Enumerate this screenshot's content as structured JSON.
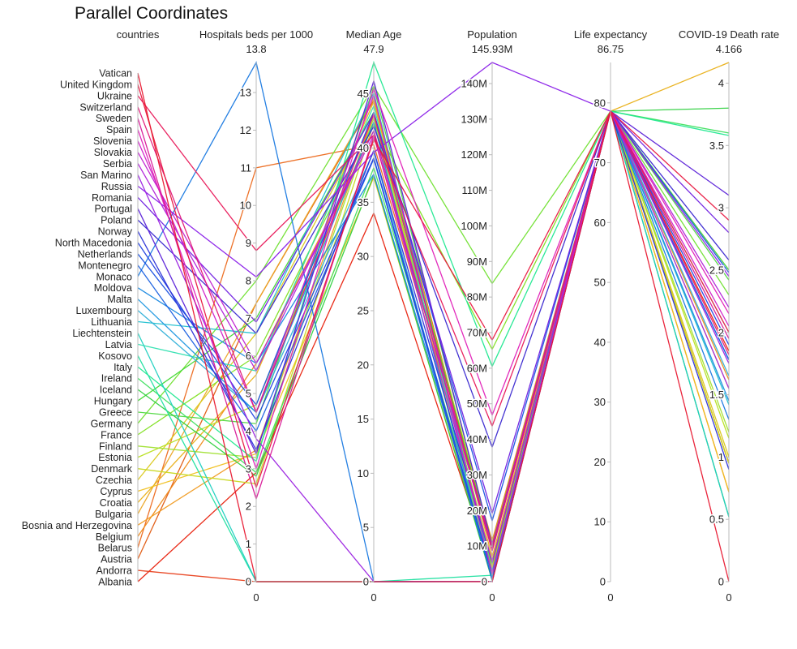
{
  "chart_data": {
    "type": "parallel_coordinates",
    "title": "Parallel Coordinates",
    "dimensions": [
      {
        "key": "countries",
        "label": "countries",
        "kind": "categorical"
      },
      {
        "key": "beds",
        "label": "Hospitals beds per 1000",
        "kind": "numeric",
        "range": [
          0,
          13.8
        ],
        "range_max_label": "13.8",
        "ticks": [
          0,
          1,
          2,
          3,
          4,
          5,
          6,
          7,
          8,
          9,
          10,
          11,
          12,
          13
        ]
      },
      {
        "key": "age",
        "label": "Median Age",
        "kind": "numeric",
        "range": [
          0,
          47.9
        ],
        "range_max_label": "47.9",
        "ticks": [
          0,
          5,
          10,
          15,
          20,
          25,
          30,
          35,
          40,
          45
        ]
      },
      {
        "key": "pop",
        "label": "Population",
        "kind": "numeric",
        "range": [
          0,
          145.93
        ],
        "range_max_label": "145.93M",
        "ticks": [
          0,
          10,
          20,
          30,
          40,
          50,
          60,
          70,
          80,
          90,
          100,
          110,
          120,
          130,
          140
        ],
        "tick_labels": [
          "0",
          "10M",
          "20M",
          "30M",
          "40M",
          "50M",
          "60M",
          "70M",
          "80M",
          "90M",
          "100M",
          "110M",
          "120M",
          "130M",
          "140M"
        ]
      },
      {
        "key": "life",
        "label": "Life expectancy",
        "kind": "numeric",
        "range": [
          0,
          86.75
        ],
        "range_max_label": "86.75",
        "ticks": [
          0,
          10,
          20,
          30,
          40,
          50,
          60,
          70,
          80
        ]
      },
      {
        "key": "death",
        "label": "COVID-19 Death rate",
        "kind": "numeric",
        "range": [
          0,
          4.166
        ],
        "range_max_label": "4.166",
        "ticks": [
          0,
          0.5,
          1,
          1.5,
          2,
          2.5,
          3,
          3.5,
          4
        ],
        "tick_labels": [
          "0",
          "0.5",
          "1",
          "1.5",
          "2",
          "2.5",
          "3",
          "3.5",
          "4"
        ]
      }
    ],
    "bottom_label": "0",
    "colors": [
      "#e6261f",
      "#eb7532",
      "#f7d038",
      "#a3e048",
      "#49da9a",
      "#34bbe6",
      "#4355db",
      "#d23be7",
      "#ff0000",
      "#ff7f00",
      "#00c000",
      "#00e0e0",
      "#0000ff",
      "#8000ff",
      "#ff00aa"
    ],
    "rows": [
      {
        "country": "Albania",
        "beds": 2.9,
        "age": 34.0,
        "pop": 2.9,
        "life": 78.6,
        "death": 1.85,
        "color": "#e8200c"
      },
      {
        "country": "Andorra",
        "beds": 0.0,
        "age": 0.0,
        "pop": 0.08,
        "life": 78.6,
        "death": 0.95,
        "color": "#e8401c"
      },
      {
        "country": "Austria",
        "beds": 7.4,
        "age": 44.4,
        "pop": 8.9,
        "life": 78.6,
        "death": 0.95,
        "color": "#e05a10"
      },
      {
        "country": "Belarus",
        "beds": 11.0,
        "age": 40.3,
        "pop": 9.4,
        "life": 78.6,
        "death": 0.72,
        "color": "#ec6a1e"
      },
      {
        "country": "Belgium",
        "beds": 5.8,
        "age": 41.6,
        "pop": 11.5,
        "life": 78.6,
        "death": 1.62,
        "color": "#ef8a18"
      },
      {
        "country": "Bosnia and Herzegovina",
        "beds": 3.5,
        "age": 43.1,
        "pop": 3.3,
        "life": 78.6,
        "death": 0.52,
        "color": "#f09a20"
      },
      {
        "country": "Bulgaria",
        "beds": 7.4,
        "age": 44.6,
        "pop": 6.9,
        "life": 78.6,
        "death": 0.95,
        "color": "#eba726"
      },
      {
        "country": "Croatia",
        "beds": 5.5,
        "age": 44.3,
        "pop": 4.1,
        "life": 78.6,
        "death": 4.166,
        "color": "#e9b018"
      },
      {
        "country": "Cyprus",
        "beds": 3.4,
        "age": 37.3,
        "pop": 1.2,
        "life": 78.6,
        "death": 0.72,
        "color": "#f0c020"
      },
      {
        "country": "Czechia",
        "beds": 6.6,
        "age": 43.3,
        "pop": 10.7,
        "life": 78.6,
        "death": 1.0,
        "color": "#dac81a"
      },
      {
        "country": "Denmark",
        "beds": 2.6,
        "age": 42.3,
        "pop": 5.8,
        "life": 78.6,
        "death": 0.95,
        "color": "#c8d820"
      },
      {
        "country": "Estonia",
        "beds": 4.7,
        "age": 42.4,
        "pop": 1.3,
        "life": 78.6,
        "death": 1.15,
        "color": "#b8e020"
      },
      {
        "country": "Finland",
        "beds": 3.3,
        "age": 42.8,
        "pop": 5.5,
        "life": 78.6,
        "death": 1.2,
        "color": "#a0e030"
      },
      {
        "country": "France",
        "beds": 6.0,
        "age": 42.3,
        "pop": 65.3,
        "life": 78.6,
        "death": 2.0,
        "color": "#80e020"
      },
      {
        "country": "Germany",
        "beds": 8.0,
        "age": 45.7,
        "pop": 83.8,
        "life": 78.6,
        "death": 2.3,
        "color": "#70e030"
      },
      {
        "country": "Greece",
        "beds": 4.2,
        "age": 45.6,
        "pop": 10.4,
        "life": 78.6,
        "death": 2.42,
        "color": "#50d840"
      },
      {
        "country": "Hungary",
        "beds": 7.0,
        "age": 43.3,
        "pop": 9.7,
        "life": 78.6,
        "death": 2.5,
        "color": "#40d830"
      },
      {
        "country": "Iceland",
        "beds": 2.8,
        "age": 37.5,
        "pop": 0.34,
        "life": 78.6,
        "death": 3.8,
        "color": "#30d040"
      },
      {
        "country": "Ireland",
        "beds": 2.9,
        "age": 38.2,
        "pop": 4.9,
        "life": 78.6,
        "death": 3.6,
        "color": "#40e060"
      },
      {
        "country": "Italy",
        "beds": 3.2,
        "age": 47.9,
        "pop": 60.5,
        "life": 78.6,
        "death": 3.58,
        "color": "#20e890"
      },
      {
        "country": "Kosovo",
        "beds": 0.0,
        "age": 0.0,
        "pop": 1.8,
        "life": 78.6,
        "death": 0.52,
        "color": "#20e0a0"
      },
      {
        "country": "Latvia",
        "beds": 5.6,
        "age": 43.9,
        "pop": 1.9,
        "life": 78.6,
        "death": 1.55,
        "color": "#30e0b0"
      },
      {
        "country": "Liechtenstein",
        "beds": 0.0,
        "age": 0.0,
        "pop": 0.04,
        "life": 78.6,
        "death": 0.52,
        "color": "#20d0c0"
      },
      {
        "country": "Lithuania",
        "beds": 6.6,
        "age": 45.1,
        "pop": 2.7,
        "life": 78.6,
        "death": 1.42,
        "color": "#20c0d0"
      },
      {
        "country": "Luxembourg",
        "beds": 4.5,
        "age": 39.7,
        "pop": 0.63,
        "life": 78.6,
        "death": 1.65,
        "color": "#30b0d8"
      },
      {
        "country": "Malta",
        "beds": 4.5,
        "age": 42.4,
        "pop": 0.44,
        "life": 78.6,
        "death": 1.78,
        "color": "#2098e0"
      },
      {
        "country": "Moldova",
        "beds": 5.8,
        "age": 37.6,
        "pop": 2.6,
        "life": 78.6,
        "death": 1.45,
        "color": "#1a88e0"
      },
      {
        "country": "Monaco",
        "beds": 13.8,
        "age": 0.0,
        "pop": 0.04,
        "life": 78.6,
        "death": 1.3,
        "color": "#1878e0"
      },
      {
        "country": "Montenegro",
        "beds": 4.0,
        "age": 39.0,
        "pop": 0.63,
        "life": 78.6,
        "death": 1.78,
        "color": "#1a60e0"
      },
      {
        "country": "Netherlands",
        "beds": 4.7,
        "age": 43.3,
        "pop": 17.1,
        "life": 78.6,
        "death": 2.48,
        "color": "#1850e0"
      },
      {
        "country": "North Macedonia",
        "beds": 4.3,
        "age": 39.1,
        "pop": 2.1,
        "life": 78.6,
        "death": 1.9,
        "color": "#2040e0"
      },
      {
        "country": "Norway",
        "beds": 3.5,
        "age": 39.8,
        "pop": 5.4,
        "life": 78.6,
        "death": 0.9,
        "color": "#2a30d8"
      },
      {
        "country": "Poland",
        "beds": 6.6,
        "age": 42.0,
        "pop": 37.8,
        "life": 78.6,
        "death": 2.58,
        "color": "#3a28d0"
      },
      {
        "country": "Portugal",
        "beds": 3.4,
        "age": 46.2,
        "pop": 10.2,
        "life": 78.6,
        "death": 3.1,
        "color": "#5a20d8"
      },
      {
        "country": "Romania",
        "beds": 6.9,
        "age": 43.2,
        "pop": 19.2,
        "life": 78.6,
        "death": 2.8,
        "color": "#7020e0"
      },
      {
        "country": "Russia",
        "beds": 8.1,
        "age": 39.6,
        "pop": 145.93,
        "life": 78.6,
        "death": 2.45,
        "color": "#8a20e8"
      },
      {
        "country": "San Marino",
        "beds": 3.8,
        "age": 0.0,
        "pop": 0.03,
        "life": 78.6,
        "death": 1.75,
        "color": "#9a20e0"
      },
      {
        "country": "Serbia",
        "beds": 5.6,
        "age": 41.6,
        "pop": 8.7,
        "life": 78.6,
        "death": 2.2,
        "color": "#b020d8"
      },
      {
        "country": "Slovakia",
        "beds": 5.8,
        "age": 41.2,
        "pop": 5.5,
        "life": 78.6,
        "death": 1.55,
        "color": "#c020d0"
      },
      {
        "country": "Slovenia",
        "beds": 4.5,
        "age": 44.9,
        "pop": 2.1,
        "life": 78.6,
        "death": 2.05,
        "color": "#d020c8"
      },
      {
        "country": "Spain",
        "beds": 3.0,
        "age": 45.5,
        "pop": 46.8,
        "life": 78.6,
        "death": 2.15,
        "color": "#e020b8"
      },
      {
        "country": "Sweden",
        "beds": 2.2,
        "age": 41.1,
        "pop": 10.1,
        "life": 78.6,
        "death": 1.95,
        "color": "#d81898"
      },
      {
        "country": "Switzerland",
        "beds": 4.5,
        "age": 43.1,
        "pop": 8.7,
        "life": 78.6,
        "death": 1.82,
        "color": "#e01878"
      },
      {
        "country": "Ukraine",
        "beds": 8.8,
        "age": 41.2,
        "pop": 43.7,
        "life": 78.6,
        "death": 2.0,
        "color": "#e81858"
      },
      {
        "country": "United Kingdom",
        "beds": 2.5,
        "age": 40.8,
        "pop": 67.9,
        "life": 78.6,
        "death": 2.9,
        "color": "#e81840"
      },
      {
        "country": "Vatican",
        "beds": 0.0,
        "age": 0.0,
        "pop": 0.001,
        "life": 78.6,
        "death": 0.0,
        "color": "#e81830"
      }
    ]
  }
}
